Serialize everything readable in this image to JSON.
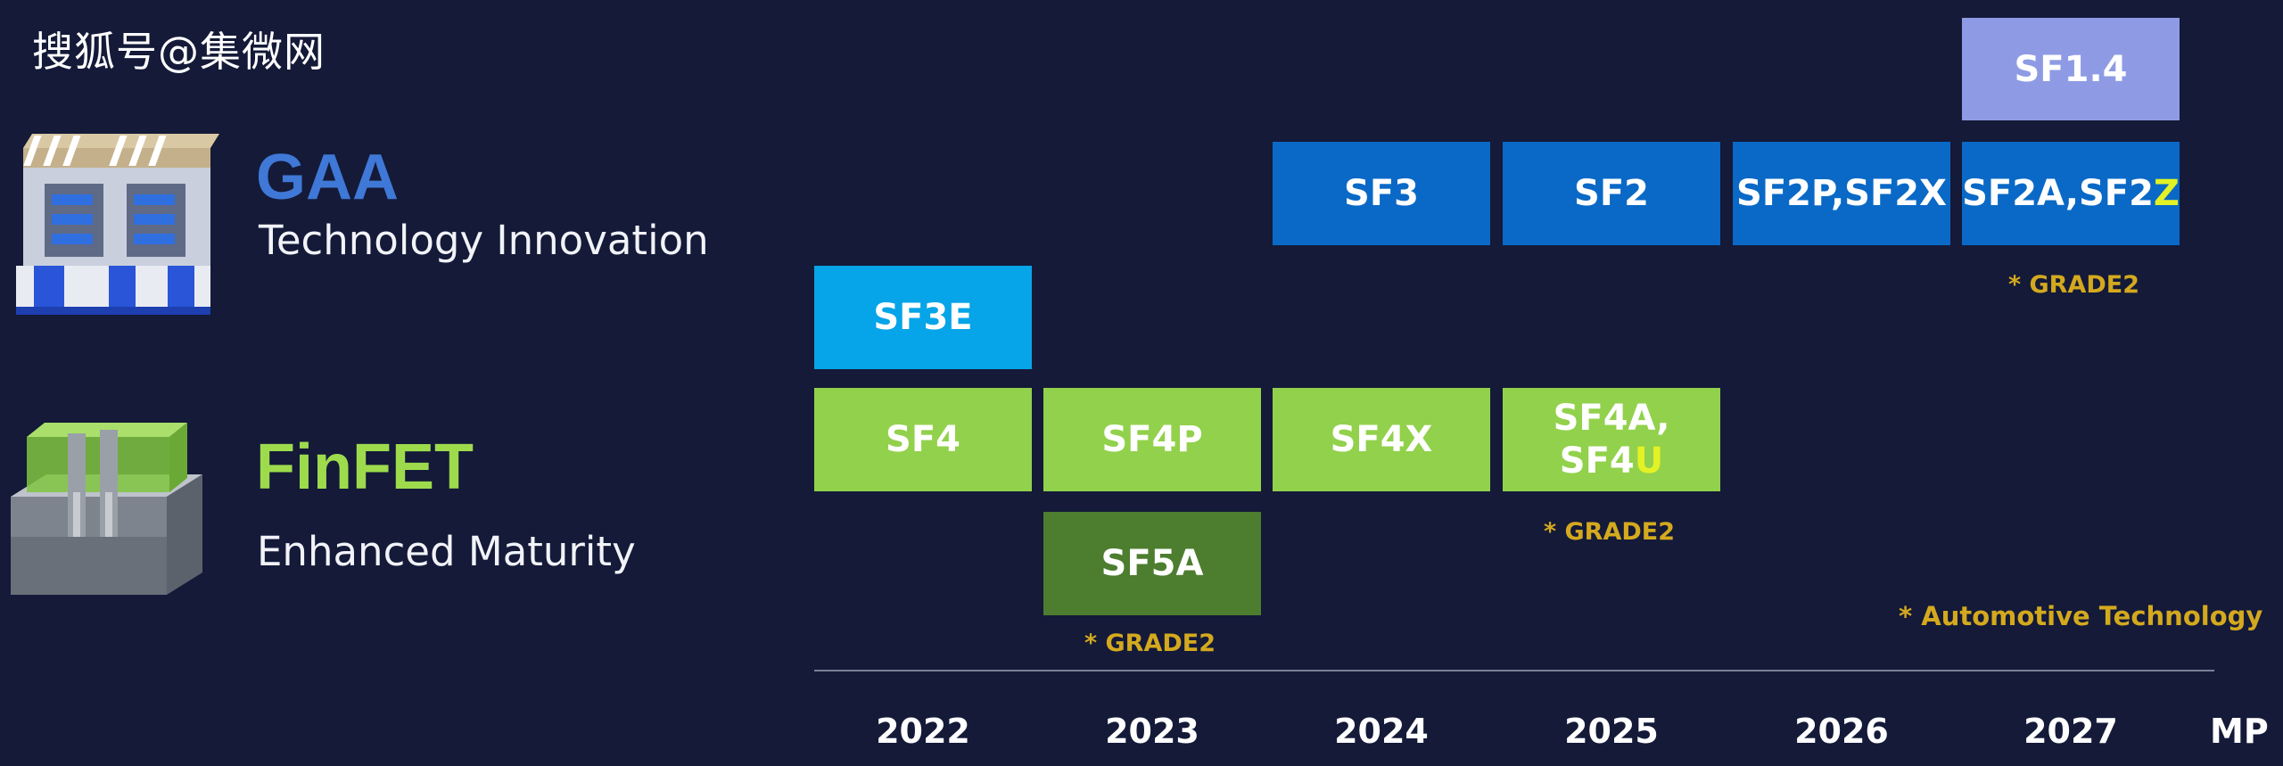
{
  "watermark": "搜狐号@集微网",
  "gaa": {
    "title": "GAA",
    "subtitle": "Technology Innovation",
    "icon": "gaa-transistor-icon"
  },
  "finfet": {
    "title": "FinFET",
    "subtitle": "Enhanced Maturity",
    "icon": "finfet-transistor-icon"
  },
  "nodes": {
    "sf14": "SF1.4",
    "sf3": "SF3",
    "sf2": "SF2",
    "sf2p": "SF2P,SF2X",
    "sf2a_main": "SF2A,SF2",
    "sf2a_suffix": "Z",
    "sf3e": "SF3E",
    "sf4": "SF4",
    "sf4p": "SF4P",
    "sf4x": "SF4X",
    "sf4a_line1": "SF4A,",
    "sf4a_line2_main": "SF4",
    "sf4a_line2_suffix": "U",
    "sf5a": "SF5A"
  },
  "notes": {
    "grade2_sf2a": "* GRADE2",
    "grade2_sf4a": "* GRADE2",
    "grade2_sf5a": "* GRADE2",
    "automotive": "* Automotive Technology"
  },
  "timeline": {
    "years": [
      "2022",
      "2023",
      "2024",
      "2025",
      "2026",
      "2027"
    ],
    "end_label": "MP"
  },
  "colors": {
    "background": "#141a38",
    "gaa_blue": "#0a69c6",
    "sf3e_cyan": "#06a4e8",
    "sf14_lavender": "#8e9be4",
    "finfet_green": "#92d14c",
    "sf5a_dark_green": "#4d7d2f",
    "note_gold": "#d4a91e",
    "highlight_yellow": "#e3f225"
  }
}
